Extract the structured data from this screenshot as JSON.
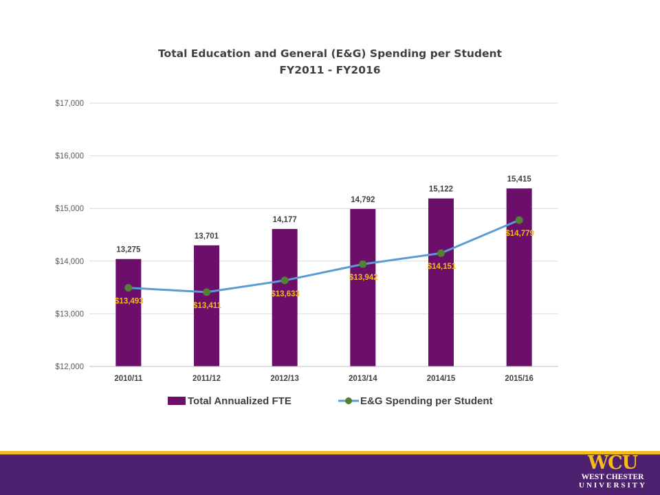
{
  "chart_data": {
    "type": "bar",
    "title": "Total Education and General (E&G) Spending per Student",
    "subtitle": "FY2011 - FY2016",
    "categories": [
      "2010/11",
      "2011/12",
      "2012/13",
      "2013/14",
      "2014/15",
      "2015/16"
    ],
    "y_ticks": [
      "$12,000",
      "$13,000",
      "$14,000",
      "$15,000",
      "$16,000",
      "$17,000"
    ],
    "ylim": [
      12000,
      17000
    ],
    "grid": true,
    "legend_position": "bottom",
    "series": [
      {
        "name": "Total Annualized FTE",
        "type": "bar",
        "color": "#6b0f6b",
        "values": [
          13275,
          13701,
          14177,
          14792,
          15122,
          15415
        ],
        "bar_tops": [
          14040,
          14300,
          14610,
          14990,
          15190,
          15380
        ],
        "labels": [
          "13,275",
          "13,701",
          "14,177",
          "14,792",
          "15,122",
          "15,415"
        ]
      },
      {
        "name": "E&G Spending per Student",
        "type": "line",
        "color": "#5b9bd5",
        "marker_color": "#548235",
        "label_color": "#f3bb1c",
        "values": [
          13493,
          13411,
          13633,
          13942,
          14151,
          14779
        ],
        "labels": [
          "$13,493",
          "$13,411",
          "$13,633",
          "$13,942",
          "$14,151",
          "$14,779"
        ]
      }
    ]
  },
  "branding": {
    "logo_text": "WCU",
    "logo_line1": "WEST CHESTER",
    "logo_line2": "UNIVERSITY",
    "gold_color": "#f3bb1c",
    "purple_color": "#4e2170"
  }
}
